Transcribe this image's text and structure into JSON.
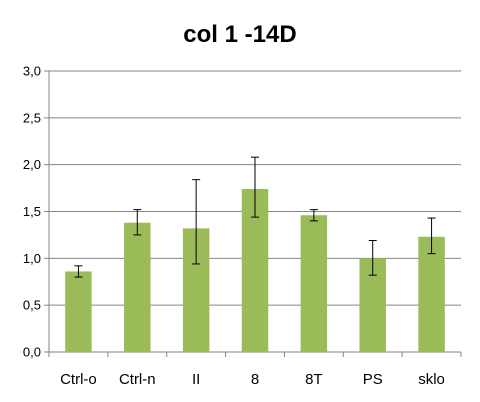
{
  "chart_data": {
    "type": "bar",
    "title": "col 1 -14D",
    "xlabel": "",
    "ylabel": "",
    "categories": [
      "Ctrl-o",
      "Ctrl-n",
      "II",
      "8",
      "8T",
      "PS",
      "sklo"
    ],
    "values": [
      0.86,
      1.38,
      1.32,
      1.74,
      1.46,
      1.0,
      1.23
    ],
    "error_low": [
      0.8,
      1.25,
      0.94,
      1.44,
      1.4,
      0.82,
      1.05
    ],
    "error_high": [
      0.92,
      1.52,
      1.84,
      2.08,
      1.52,
      1.19,
      1.43
    ],
    "ylim": [
      0.0,
      3.0
    ],
    "yticks": [
      0.0,
      0.5,
      1.0,
      1.5,
      2.0,
      2.5,
      3.0
    ],
    "ytick_labels": [
      "0,0",
      "0,5",
      "1,0",
      "1,5",
      "2,0",
      "2,5",
      "3,0"
    ],
    "grid": "horizontal",
    "legend": "none",
    "colors": {
      "bar": "#9bbb59",
      "gridline": "#868686",
      "axis": "#868686",
      "error_bar": "#000000"
    }
  }
}
